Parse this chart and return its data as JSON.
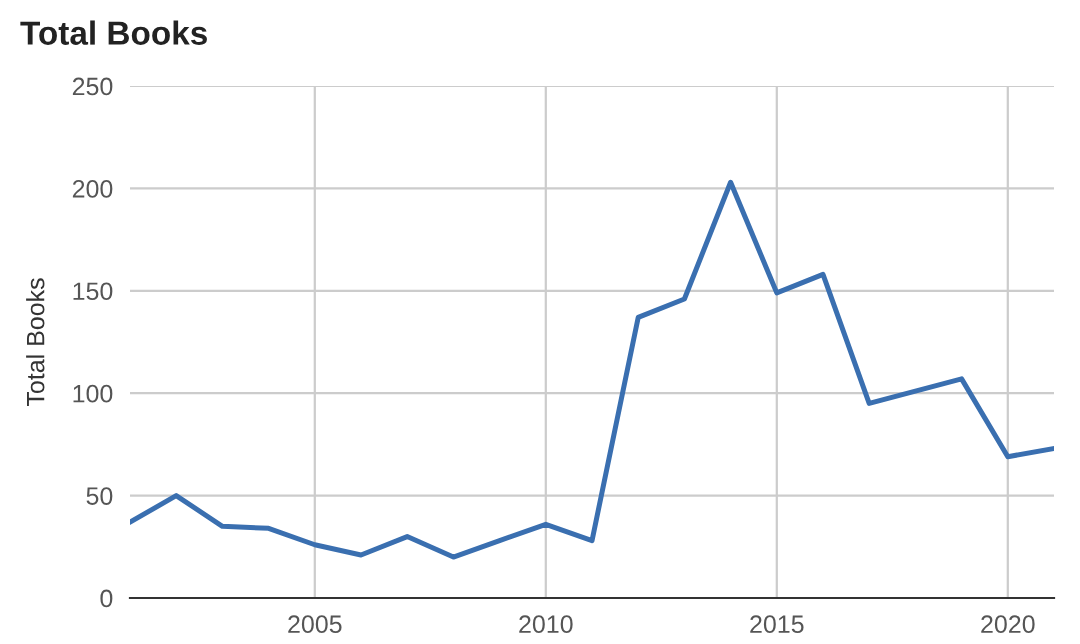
{
  "chart_data": {
    "type": "line",
    "title": "Total Books",
    "ylabel": "Total Books",
    "x": [
      2001,
      2002,
      2003,
      2004,
      2005,
      2006,
      2007,
      2008,
      2009,
      2010,
      2011,
      2012,
      2013,
      2014,
      2015,
      2016,
      2017,
      2018,
      2019,
      2020,
      2021
    ],
    "series": [
      {
        "color": "#3a6fb0",
        "values": [
          37,
          50,
          35,
          34,
          26,
          21,
          30,
          20,
          28,
          36,
          28,
          137,
          146,
          203,
          149,
          158,
          95,
          101,
          107,
          69,
          73
        ]
      }
    ],
    "xlim": [
      2001,
      2021
    ],
    "xticks": [
      2005,
      2010,
      2015,
      2020
    ],
    "ylim": [
      0,
      250
    ],
    "yticks": [
      0,
      50,
      100,
      150,
      200,
      250
    ],
    "grid": true
  }
}
